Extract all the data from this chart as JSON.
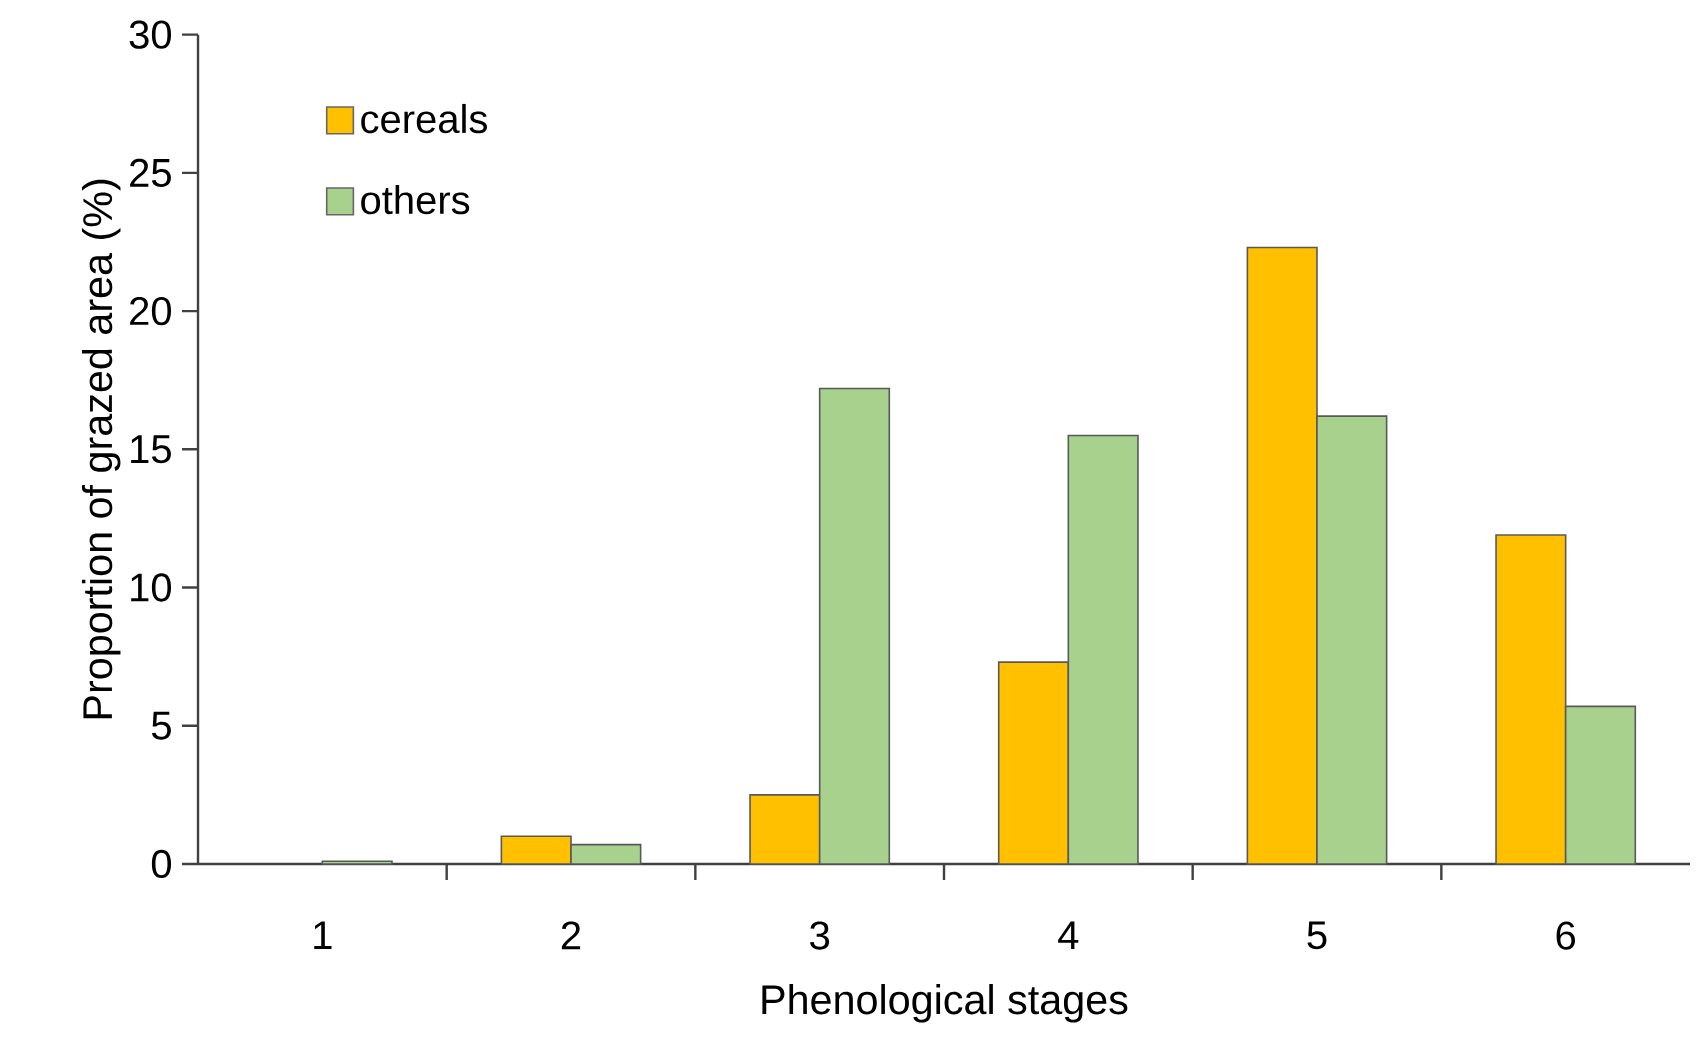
{
  "chart_data": {
    "type": "bar",
    "xlabel": "Phenological stages",
    "ylabel": "Proportion of grazed area (%)",
    "categories": [
      "1",
      "2",
      "3",
      "4",
      "5",
      "6"
    ],
    "series": [
      {
        "name": "cereals",
        "color": "#ffc000",
        "values": [
          0,
          1.0,
          2.5,
          7.3,
          22.3,
          11.9
        ]
      },
      {
        "name": "others",
        "color": "#a9d18e",
        "values": [
          0.1,
          0.7,
          17.2,
          15.5,
          16.2,
          5.7
        ]
      }
    ],
    "ylim": [
      0,
      30
    ],
    "yticks": [
      0,
      5,
      10,
      15,
      20,
      25,
      30
    ],
    "legend": "top left"
  }
}
